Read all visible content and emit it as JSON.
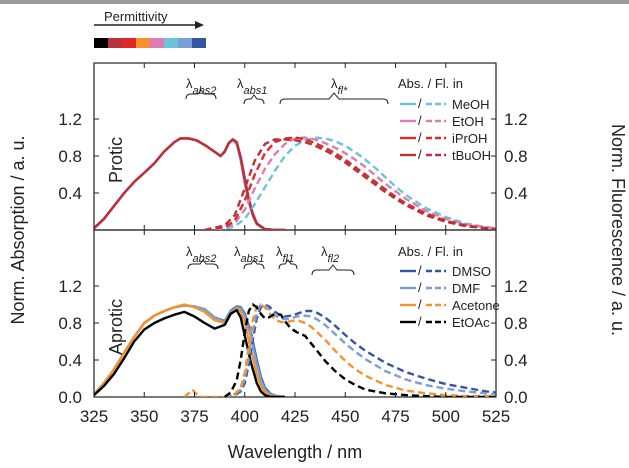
{
  "colors": {
    "MeOH": "#6cc4d8",
    "EtOH": "#e07ab2",
    "iPrOH": "#e02828",
    "tBuOH": "#b8323a",
    "DMSO": "#3454a4",
    "DMF": "#7c9ed6",
    "Acetone": "#f5922e",
    "EtOAc": "#000000",
    "permittivity_bar": [
      "#000000",
      "#b8323a",
      "#e02828",
      "#f5922e",
      "#e07ab2",
      "#6cc4d8",
      "#7c9ed6",
      "#3454a4"
    ]
  },
  "header": {
    "permittivity_label": "Permittivity"
  },
  "axes": {
    "xlabel": "Wavelength / nm",
    "ylabel_left": "Norm. Absorption / a. u.",
    "ylabel_right": "Norm. Fluorescence / a. u.",
    "xticks": [
      "325",
      "350",
      "375",
      "400",
      "425",
      "450",
      "475",
      "500",
      "525"
    ],
    "yticks": [
      "0.0",
      "0.4",
      "0.8",
      "1.2"
    ],
    "yticks_top": [
      "0.4",
      "0.8",
      "1.2"
    ]
  },
  "top": {
    "label": "Protic",
    "legend_title": "Abs. / Fl. in",
    "slash": "/",
    "annotations": {
      "abs2": "λabs2",
      "abs1": "λabs1",
      "fl": "λfl*"
    }
  },
  "bottom": {
    "label": "Aprotic",
    "legend_title": "Abs. / Fl. in",
    "slash": "/",
    "annotations": {
      "abs2": "λabs2",
      "abs1": "λabs1",
      "fl1": "λfl1",
      "fl2": "λfl2"
    }
  },
  "chart_data": [
    {
      "type": "line",
      "panel": "Protic",
      "xlim": [
        325,
        525
      ],
      "ylim": [
        0,
        1.3
      ],
      "series": [
        {
          "name": "MeOH",
          "kind": "absorption",
          "color": "#6cc4d8",
          "x": [
            325,
            330,
            335,
            340,
            345,
            350,
            355,
            360,
            365,
            368,
            372,
            376,
            380,
            384,
            388,
            390,
            392,
            394,
            396,
            398,
            400,
            402,
            404,
            406,
            410,
            415,
            420
          ],
          "y": [
            0.02,
            0.12,
            0.26,
            0.4,
            0.52,
            0.62,
            0.72,
            0.85,
            0.95,
            0.99,
            0.99,
            0.97,
            0.92,
            0.86,
            0.8,
            0.84,
            0.93,
            0.97,
            0.93,
            0.75,
            0.5,
            0.3,
            0.15,
            0.06,
            0.01,
            0.0,
            0.0
          ]
        },
        {
          "name": "EtOH",
          "kind": "absorption",
          "color": "#e07ab2",
          "x": [
            325,
            330,
            335,
            340,
            345,
            350,
            355,
            360,
            365,
            368,
            372,
            376,
            380,
            384,
            388,
            390,
            392,
            394,
            396,
            398,
            400,
            402,
            404,
            406,
            410,
            415,
            420
          ],
          "y": [
            0.02,
            0.12,
            0.26,
            0.4,
            0.52,
            0.62,
            0.72,
            0.85,
            0.95,
            0.99,
            0.99,
            0.97,
            0.92,
            0.86,
            0.8,
            0.85,
            0.94,
            0.98,
            0.94,
            0.76,
            0.52,
            0.31,
            0.16,
            0.06,
            0.01,
            0.0,
            0.0
          ]
        },
        {
          "name": "iPrOH",
          "kind": "absorption",
          "color": "#e02828",
          "x": [
            325,
            330,
            335,
            340,
            345,
            350,
            355,
            360,
            365,
            368,
            372,
            376,
            380,
            384,
            388,
            390,
            392,
            394,
            396,
            398,
            400,
            402,
            404,
            406,
            410,
            415,
            420
          ],
          "y": [
            0.02,
            0.12,
            0.26,
            0.4,
            0.52,
            0.62,
            0.72,
            0.85,
            0.95,
            0.99,
            0.99,
            0.97,
            0.92,
            0.86,
            0.8,
            0.85,
            0.94,
            0.98,
            0.95,
            0.78,
            0.54,
            0.32,
            0.17,
            0.07,
            0.01,
            0.0,
            0.0
          ]
        },
        {
          "name": "tBuOH",
          "kind": "absorption",
          "color": "#b8323a",
          "x": [
            325,
            330,
            335,
            340,
            345,
            350,
            355,
            360,
            365,
            368,
            372,
            376,
            380,
            384,
            388,
            390,
            392,
            394,
            396,
            398,
            400,
            402,
            404,
            406,
            410,
            415,
            420
          ],
          "y": [
            0.02,
            0.12,
            0.26,
            0.4,
            0.52,
            0.62,
            0.72,
            0.85,
            0.95,
            0.99,
            0.99,
            0.97,
            0.92,
            0.86,
            0.8,
            0.85,
            0.94,
            0.98,
            0.95,
            0.79,
            0.56,
            0.34,
            0.18,
            0.07,
            0.01,
            0.0,
            0.0
          ]
        },
        {
          "name": "MeOH",
          "kind": "fluorescence",
          "color": "#6cc4d8",
          "x": [
            380,
            390,
            395,
            400,
            405,
            410,
            415,
            420,
            425,
            430,
            435,
            440,
            445,
            450,
            455,
            460,
            465,
            470,
            475,
            480,
            490,
            500,
            510,
            520,
            525
          ],
          "y": [
            0.0,
            0.01,
            0.04,
            0.12,
            0.28,
            0.46,
            0.64,
            0.8,
            0.91,
            0.97,
            1.0,
            0.99,
            0.96,
            0.91,
            0.84,
            0.76,
            0.67,
            0.57,
            0.47,
            0.38,
            0.24,
            0.14,
            0.07,
            0.03,
            0.02
          ]
        },
        {
          "name": "EtOH",
          "kind": "fluorescence",
          "color": "#e07ab2",
          "x": [
            380,
            390,
            395,
            400,
            405,
            410,
            415,
            420,
            425,
            430,
            435,
            440,
            445,
            450,
            455,
            460,
            465,
            470,
            475,
            480,
            490,
            500,
            510,
            520,
            525
          ],
          "y": [
            0.0,
            0.02,
            0.07,
            0.22,
            0.45,
            0.66,
            0.82,
            0.93,
            0.99,
            1.0,
            0.98,
            0.94,
            0.89,
            0.83,
            0.76,
            0.68,
            0.59,
            0.5,
            0.42,
            0.34,
            0.21,
            0.12,
            0.06,
            0.03,
            0.02
          ]
        },
        {
          "name": "iPrOH",
          "kind": "fluorescence",
          "color": "#e02828",
          "x": [
            380,
            390,
            395,
            400,
            405,
            410,
            415,
            420,
            425,
            430,
            435,
            440,
            445,
            450,
            455,
            460,
            465,
            470,
            475,
            480,
            490,
            500,
            510,
            520,
            525
          ],
          "y": [
            0.0,
            0.03,
            0.1,
            0.32,
            0.6,
            0.83,
            0.95,
            0.99,
            1.0,
            0.98,
            0.94,
            0.89,
            0.83,
            0.76,
            0.68,
            0.6,
            0.52,
            0.44,
            0.36,
            0.29,
            0.18,
            0.1,
            0.05,
            0.02,
            0.01
          ]
        },
        {
          "name": "tBuOH",
          "kind": "fluorescence",
          "color": "#b8323a",
          "x": [
            380,
            390,
            395,
            400,
            405,
            410,
            415,
            420,
            425,
            430,
            435,
            440,
            445,
            450,
            455,
            460,
            465,
            470,
            475,
            480,
            490,
            500,
            510,
            520,
            525
          ],
          "y": [
            0.0,
            0.05,
            0.16,
            0.45,
            0.75,
            0.93,
            0.98,
            0.98,
            0.97,
            0.95,
            0.91,
            0.86,
            0.8,
            0.73,
            0.65,
            0.57,
            0.49,
            0.41,
            0.34,
            0.27,
            0.16,
            0.09,
            0.04,
            0.02,
            0.01
          ]
        }
      ]
    },
    {
      "type": "line",
      "panel": "Aprotic",
      "xlim": [
        325,
        525
      ],
      "ylim": [
        0,
        1.3
      ],
      "series": [
        {
          "name": "DMSO",
          "kind": "absorption",
          "color": "#3454a4",
          "x": [
            325,
            330,
            335,
            340,
            345,
            350,
            355,
            360,
            365,
            370,
            375,
            380,
            385,
            390,
            393,
            396,
            398,
            400,
            403,
            406,
            408,
            410,
            413,
            416,
            420
          ],
          "y": [
            0.03,
            0.15,
            0.3,
            0.48,
            0.65,
            0.8,
            0.88,
            0.93,
            0.97,
            0.99,
            0.98,
            0.95,
            0.86,
            0.82,
            0.93,
            0.98,
            0.97,
            0.9,
            0.7,
            0.4,
            0.22,
            0.1,
            0.03,
            0.01,
            0.0
          ]
        },
        {
          "name": "DMF",
          "kind": "absorption",
          "color": "#7c9ed6",
          "x": [
            325,
            330,
            335,
            340,
            345,
            350,
            355,
            360,
            365,
            370,
            375,
            380,
            385,
            390,
            393,
            396,
            398,
            400,
            403,
            406,
            408,
            410,
            413,
            416,
            420
          ],
          "y": [
            0.03,
            0.15,
            0.3,
            0.48,
            0.65,
            0.8,
            0.88,
            0.93,
            0.97,
            0.99,
            0.98,
            0.95,
            0.86,
            0.81,
            0.92,
            0.97,
            0.96,
            0.88,
            0.66,
            0.36,
            0.19,
            0.08,
            0.02,
            0.01,
            0.0
          ]
        },
        {
          "name": "Acetone",
          "kind": "absorption",
          "color": "#f5922e",
          "x": [
            325,
            330,
            335,
            340,
            345,
            350,
            355,
            360,
            365,
            370,
            375,
            380,
            385,
            390,
            393,
            396,
            398,
            400,
            403,
            406,
            408,
            410,
            413,
            416,
            420
          ],
          "y": [
            0.03,
            0.15,
            0.3,
            0.48,
            0.65,
            0.8,
            0.88,
            0.93,
            0.97,
            1.0,
            0.97,
            0.92,
            0.83,
            0.8,
            0.9,
            0.96,
            0.93,
            0.8,
            0.52,
            0.25,
            0.12,
            0.05,
            0.01,
            0.0,
            0.0
          ]
        },
        {
          "name": "EtOAc",
          "kind": "absorption",
          "color": "#000000",
          "x": [
            325,
            330,
            335,
            340,
            345,
            350,
            355,
            360,
            365,
            370,
            375,
            380,
            385,
            390,
            393,
            396,
            398,
            400,
            403,
            406,
            408,
            410,
            413,
            416,
            420
          ],
          "y": [
            0.02,
            0.12,
            0.25,
            0.42,
            0.6,
            0.73,
            0.8,
            0.85,
            0.89,
            0.92,
            0.87,
            0.8,
            0.74,
            0.78,
            0.9,
            0.94,
            0.86,
            0.66,
            0.38,
            0.15,
            0.06,
            0.02,
            0.0,
            0.0,
            0.0
          ]
        },
        {
          "name": "DMSO",
          "kind": "fluorescence",
          "color": "#3454a4",
          "x": [
            390,
            395,
            398,
            400,
            402,
            404,
            406,
            408,
            410,
            412,
            415,
            418,
            420,
            423,
            426,
            430,
            433,
            436,
            440,
            445,
            450,
            455,
            460,
            470,
            480,
            490,
            500,
            510,
            520,
            525
          ],
          "y": [
            0.0,
            0.02,
            0.06,
            0.15,
            0.35,
            0.62,
            0.85,
            0.97,
            1.0,
            0.98,
            0.92,
            0.88,
            0.87,
            0.88,
            0.9,
            0.93,
            0.93,
            0.91,
            0.86,
            0.77,
            0.67,
            0.58,
            0.5,
            0.37,
            0.27,
            0.2,
            0.14,
            0.1,
            0.06,
            0.05
          ]
        },
        {
          "name": "DMF",
          "kind": "fluorescence",
          "color": "#7c9ed6",
          "x": [
            390,
            395,
            398,
            400,
            402,
            404,
            406,
            408,
            410,
            412,
            415,
            418,
            420,
            423,
            426,
            430,
            433,
            436,
            440,
            445,
            450,
            455,
            460,
            470,
            480,
            490,
            500,
            510,
            520,
            525
          ],
          "y": [
            0.0,
            0.03,
            0.08,
            0.2,
            0.43,
            0.7,
            0.91,
            1.0,
            0.99,
            0.95,
            0.88,
            0.85,
            0.84,
            0.85,
            0.87,
            0.88,
            0.87,
            0.84,
            0.78,
            0.68,
            0.58,
            0.49,
            0.41,
            0.28,
            0.19,
            0.13,
            0.09,
            0.06,
            0.04,
            0.03
          ]
        },
        {
          "name": "Acetone",
          "kind": "fluorescence",
          "color": "#f5922e",
          "x": [
            370,
            372,
            374,
            376,
            378,
            380,
            390,
            395,
            398,
            400,
            402,
            404,
            406,
            408,
            410,
            412,
            415,
            418,
            420,
            423,
            426,
            430,
            433,
            436,
            440,
            445,
            450,
            455,
            460,
            470,
            480,
            490,
            500,
            510,
            520,
            525
          ],
          "y": [
            0.0,
            0.04,
            0.08,
            0.03,
            0.0,
            0.0,
            0.0,
            0.03,
            0.1,
            0.26,
            0.55,
            0.83,
            0.98,
            1.0,
            0.97,
            0.91,
            0.84,
            0.81,
            0.81,
            0.82,
            0.83,
            0.8,
            0.76,
            0.7,
            0.62,
            0.5,
            0.39,
            0.3,
            0.23,
            0.13,
            0.07,
            0.04,
            0.02,
            0.01,
            0.01,
            0.01
          ]
        },
        {
          "name": "EtOAc",
          "kind": "fluorescence",
          "color": "#000000",
          "x": [
            390,
            393,
            396,
            398,
            400,
            402,
            404,
            406,
            408,
            410,
            412,
            415,
            418,
            420,
            423,
            426,
            430,
            433,
            436,
            440,
            445,
            450,
            455,
            460,
            470,
            480,
            490,
            500,
            510,
            520,
            525
          ],
          "y": [
            0.0,
            0.05,
            0.18,
            0.4,
            0.7,
            0.93,
            1.0,
            0.97,
            0.9,
            0.85,
            0.86,
            0.9,
            0.89,
            0.82,
            0.74,
            0.7,
            0.66,
            0.58,
            0.5,
            0.39,
            0.28,
            0.19,
            0.13,
            0.08,
            0.04,
            0.02,
            0.01,
            0.0,
            0.0,
            0.0,
            0.0
          ]
        }
      ]
    }
  ]
}
